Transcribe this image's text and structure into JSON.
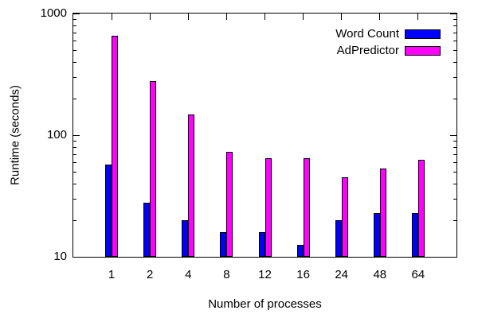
{
  "chart_data": {
    "type": "bar",
    "title": "",
    "xlabel": "Number of processes",
    "ylabel": "Runtime (seconds)",
    "y_scale": "log",
    "ylim": [
      10,
      1000
    ],
    "y_major_ticks": [
      10,
      100,
      1000
    ],
    "y_minor_ticks": [
      20,
      30,
      40,
      50,
      60,
      70,
      80,
      90,
      200,
      300,
      400,
      500,
      600,
      700,
      800,
      900
    ],
    "categories": [
      "1",
      "2",
      "4",
      "8",
      "12",
      "16",
      "24",
      "48",
      "64"
    ],
    "series": [
      {
        "name": "Word Count",
        "color": "#0000ff",
        "values": [
          57,
          28,
          20,
          16,
          16,
          12.5,
          20,
          23,
          23
        ]
      },
      {
        "name": "AdPredictor",
        "color": "#ff00ff",
        "values": [
          655,
          280,
          148,
          73,
          65,
          65,
          45,
          53,
          63
        ]
      }
    ],
    "legend_position": "top-right-inside",
    "grid": false,
    "background": "#ffffff",
    "axis_color": "#000000",
    "text_color": "#000000"
  }
}
